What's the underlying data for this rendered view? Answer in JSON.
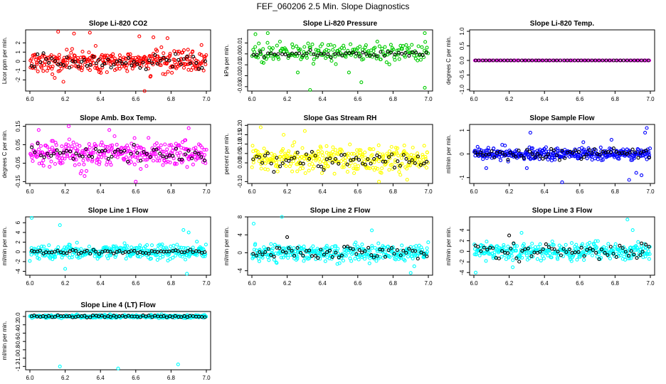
{
  "figure": {
    "title": "FEF_060206  2.5 Min. Slope Diagnostics"
  },
  "chart_data": [
    {
      "type": "scatter",
      "title": "Slope Li-820 CO2",
      "ylabel": "Licor ppm per min.",
      "xlim": [
        6.0,
        7.0
      ],
      "ylim": [
        -3.2,
        3.4
      ],
      "xticks": [
        "6.0",
        "6.2",
        "6.4",
        "6.6",
        "6.8",
        "7.0"
      ],
      "yticks": [
        {
          "v": -2,
          "label": "-2"
        },
        {
          "v": -1,
          "label": "-1"
        },
        {
          "v": 0,
          "label": "0"
        },
        {
          "v": 1,
          "label": "1"
        },
        {
          "v": 2,
          "label": "2"
        }
      ],
      "color": "#ff0000",
      "series": [
        {
          "name": "points",
          "color": "#ff0000",
          "spread": 0.9,
          "n": 330,
          "seed": 11,
          "extra": [
            [
              6.16,
              3.2
            ],
            [
              6.19,
              -2.2
            ],
            [
              6.25,
              3.0
            ],
            [
              6.34,
              3.1
            ],
            [
              6.65,
              -3.2
            ],
            [
              6.62,
              2.7
            ],
            [
              6.7,
              2.6
            ],
            [
              6.78,
              2.5
            ]
          ]
        },
        {
          "name": "black",
          "color": "#000000",
          "spread": 0.7,
          "n": 60,
          "seed": 12
        }
      ]
    },
    {
      "type": "scatter",
      "title": "Slope Li-820 Pressure",
      "ylabel": "kPa per min.",
      "xlim": [
        6.0,
        7.0
      ],
      "ylim": [
        -0.034,
        0.022
      ],
      "xticks": [
        "6.0",
        "6.2",
        "6.4",
        "6.6",
        "6.8",
        "7.0"
      ],
      "yticks": [
        {
          "v": -0.03,
          "label": "-0.03"
        },
        {
          "v": -0.02,
          "label": "-0.02"
        },
        {
          "v": -0.01,
          "label": "-0.01"
        },
        {
          "v": 0.0,
          "label": "0.00"
        },
        {
          "v": 0.01,
          "label": "0.01"
        }
      ],
      "color": "#00cc00",
      "series": [
        {
          "name": "points",
          "color": "#00cc00",
          "spread": 0.006,
          "n": 200,
          "seed": 21,
          "bias": 0.001,
          "extra": [
            [
              6.33,
              -0.033
            ],
            [
              6.98,
              -0.031
            ],
            [
              6.62,
              -0.026
            ],
            [
              6.02,
              0.018
            ],
            [
              6.09,
              0.019
            ],
            [
              6.98,
              0.019
            ],
            [
              6.55,
              -0.017
            ],
            [
              6.26,
              -0.017
            ]
          ]
        },
        {
          "name": "black",
          "color": "#000000",
          "spread": 0.002,
          "n": 50,
          "seed": 22,
          "bias": 0.0
        }
      ]
    },
    {
      "type": "scatter",
      "title": "Slope Li-820 Temp.",
      "ylabel": "degrees C per min.",
      "xlim": [
        6.0,
        7.0
      ],
      "ylim": [
        -1.05,
        1.05
      ],
      "xticks": [
        "6.0",
        "6.2",
        "6.4",
        "6.6",
        "6.8",
        "7.0"
      ],
      "yticks": [
        {
          "v": -1.0,
          "label": "-1.0"
        },
        {
          "v": -0.5,
          "label": "-0.5"
        },
        {
          "v": 0.0,
          "label": "0.0"
        },
        {
          "v": 0.5,
          "label": "0.5"
        },
        {
          "v": 1.0,
          "label": "1.0"
        }
      ],
      "color": "#ff00ff",
      "series": [
        {
          "name": "points",
          "color": "#ff00ff",
          "spread": 0.0,
          "n": 95,
          "seed": 31,
          "line": true
        },
        {
          "name": "black",
          "color": "#000000",
          "spread": 0.0,
          "n": 50,
          "seed": 32,
          "line": true
        }
      ]
    },
    {
      "type": "scatter",
      "title": "Slope Amb. Box Temp.",
      "ylabel": "degrees C per min.",
      "xlim": [
        6.0,
        7.0
      ],
      "ylim": [
        -0.16,
        0.16
      ],
      "xticks": [
        "6.0",
        "6.2",
        "6.4",
        "6.6",
        "6.8",
        "7.0"
      ],
      "yticks": [
        {
          "v": -0.15,
          "label": "-0.15"
        },
        {
          "v": -0.05,
          "label": "-0.05"
        },
        {
          "v": 0.05,
          "label": "0.05"
        },
        {
          "v": 0.15,
          "label": "0.15"
        }
      ],
      "color": "#ff00ff",
      "series": [
        {
          "name": "points",
          "color": "#ff00ff",
          "spread": 0.05,
          "n": 330,
          "seed": 41,
          "extra": [
            [
              6.22,
              0.15
            ],
            [
              6.31,
              -0.12
            ],
            [
              6.6,
              -0.15
            ],
            [
              6.45,
              0.13
            ],
            [
              6.05,
              0.13
            ],
            [
              6.9,
              0.14
            ]
          ]
        },
        {
          "name": "black",
          "color": "#000000",
          "spread": 0.03,
          "n": 55,
          "seed": 42
        }
      ]
    },
    {
      "type": "scatter",
      "title": "Slope Gas Stream RH",
      "ylabel": "percent per min.",
      "xlim": [
        6.0,
        7.0
      ],
      "ylim": [
        -0.11,
        0.205
      ],
      "xticks": [
        "6.0",
        "6.2",
        "6.4",
        "6.6",
        "6.8",
        "7.0"
      ],
      "yticks": [
        {
          "v": -0.1,
          "label": "-0.10"
        },
        {
          "v": 0.0,
          "label": "0.00"
        },
        {
          "v": 0.05,
          "label": "0.05"
        },
        {
          "v": 0.1,
          "label": "0.10"
        },
        {
          "v": 0.15,
          "label": "0.15"
        },
        {
          "v": 0.2,
          "label": "0.20"
        }
      ],
      "color": "#ffff00",
      "series": [
        {
          "name": "points",
          "color": "#ffff00",
          "spread": 0.045,
          "n": 330,
          "seed": 51,
          "bias": 0.02,
          "extra": [
            [
              6.05,
              0.19
            ],
            [
              6.3,
              0.17
            ],
            [
              6.72,
              -0.1
            ],
            [
              6.88,
              -0.09
            ],
            [
              6.18,
              0.15
            ]
          ]
        },
        {
          "name": "black",
          "color": "#000000",
          "spread": 0.035,
          "n": 60,
          "seed": 52,
          "bias": 0.01
        }
      ]
    },
    {
      "type": "scatter",
      "title": "Slope Sample Flow",
      "ylabel": "ml/min per min.",
      "xlim": [
        6.0,
        7.0
      ],
      "ylim": [
        -1.25,
        1.25
      ],
      "xticks": [
        "6.0",
        "6.2",
        "6.4",
        "6.6",
        "6.8",
        "7.0"
      ],
      "yticks": [
        {
          "v": -1,
          "label": "-1"
        },
        {
          "v": 0,
          "label": "0"
        },
        {
          "v": 1,
          "label": "1"
        }
      ],
      "color": "#0000ff",
      "series": [
        {
          "name": "points",
          "color": "#0000ff",
          "spread": 0.18,
          "n": 340,
          "seed": 61,
          "extra": [
            [
              6.98,
              1.1
            ],
            [
              6.97,
              0.9
            ],
            [
              6.95,
              -0.9
            ],
            [
              6.5,
              -1.2
            ],
            [
              6.88,
              -1.1
            ],
            [
              6.32,
              0.9
            ],
            [
              6.07,
              -0.6
            ],
            [
              6.3,
              -0.6
            ],
            [
              6.78,
              0.6
            ],
            [
              6.62,
              0.5
            ],
            [
              6.92,
              -0.8
            ]
          ]
        },
        {
          "name": "black",
          "color": "#000000",
          "spread": 0.15,
          "n": 65,
          "seed": 62
        }
      ]
    },
    {
      "type": "scatter",
      "title": "Slope Line 1 Flow",
      "ylabel": "ml/min per min.",
      "xlim": [
        6.0,
        7.0
      ],
      "ylim": [
        -4.8,
        7.2
      ],
      "xticks": [
        "6.0",
        "6.2",
        "6.4",
        "6.6",
        "6.8",
        "7.0"
      ],
      "yticks": [
        {
          "v": -4,
          "label": "-4"
        },
        {
          "v": -2,
          "label": "-2"
        },
        {
          "v": 0,
          "label": "0"
        },
        {
          "v": 2,
          "label": "2"
        },
        {
          "v": 4,
          "label": "4"
        },
        {
          "v": 6,
          "label": "6"
        }
      ],
      "color": "#00ffff",
      "series": [
        {
          "name": "points",
          "color": "#00ffff",
          "spread": 1.1,
          "n": 330,
          "seed": 71,
          "extra": [
            [
              6.01,
              7.0
            ],
            [
              6.17,
              5.5
            ],
            [
              6.89,
              -4.5
            ],
            [
              6.87,
              4.5
            ],
            [
              6.9,
              4.0
            ],
            [
              6.2,
              -3.5
            ]
          ]
        },
        {
          "name": "black",
          "color": "#000000",
          "spread": 0.3,
          "n": 60,
          "seed": 72
        }
      ]
    },
    {
      "type": "scatter",
      "title": "Slope Line 2 Flow",
      "ylabel": "ml/min per min.",
      "xlim": [
        6.0,
        7.0
      ],
      "ylim": [
        -5.0,
        8.0
      ],
      "xticks": [
        "6.0",
        "6.2",
        "6.4",
        "6.6",
        "6.8",
        "7.0"
      ],
      "yticks": [
        {
          "v": -4,
          "label": "-4"
        },
        {
          "v": 0,
          "label": "0"
        },
        {
          "v": 4,
          "label": "4"
        },
        {
          "v": 8,
          "label": "8"
        }
      ],
      "color": "#00ffff",
      "series": [
        {
          "name": "points",
          "color": "#00ffff",
          "spread": 1.4,
          "n": 330,
          "seed": 81,
          "extra": [
            [
              6.01,
              6.5
            ],
            [
              6.17,
              8.0
            ],
            [
              6.68,
              5.0
            ],
            [
              6.9,
              -4.5
            ],
            [
              6.92,
              -3.0
            ]
          ]
        },
        {
          "name": "black",
          "color": "#000000",
          "spread": 1.0,
          "n": 60,
          "seed": 82,
          "extra": [
            [
              6.2,
              3.5
            ]
          ]
        }
      ]
    },
    {
      "type": "scatter",
      "title": "Slope Line 3 Flow",
      "ylabel": "ml/min per min.",
      "xlim": [
        6.0,
        7.0
      ],
      "ylim": [
        -4.5,
        6.5
      ],
      "xticks": [
        "6.0",
        "6.2",
        "6.4",
        "6.6",
        "6.8",
        "7.0"
      ],
      "yticks": [
        {
          "v": -4,
          "label": "-4"
        },
        {
          "v": -2,
          "label": "-2"
        },
        {
          "v": 0,
          "label": "0"
        },
        {
          "v": 2,
          "label": "2"
        },
        {
          "v": 4,
          "label": "4"
        }
      ],
      "color": "#00ffff",
      "series": [
        {
          "name": "points",
          "color": "#00ffff",
          "spread": 1.1,
          "n": 330,
          "seed": 91,
          "extra": [
            [
              6.01,
              -4.0
            ],
            [
              6.87,
              6.0
            ],
            [
              6.27,
              3.5
            ],
            [
              6.22,
              -3.0
            ],
            [
              6.9,
              4.0
            ]
          ]
        },
        {
          "name": "black",
          "color": "#000000",
          "spread": 0.9,
          "n": 60,
          "seed": 92,
          "extra": [
            [
              6.2,
              3.0
            ],
            [
              6.95,
              1.5
            ]
          ]
        }
      ]
    },
    {
      "type": "scatter",
      "title": "Slope Line 4 (LT) Flow",
      "ylabel": "ml/min per min.",
      "xlim": [
        6.0,
        7.0
      ],
      "ylim": [
        -1.28,
        0.12
      ],
      "xticks": [
        "6.0",
        "6.2",
        "6.4",
        "6.6",
        "6.8",
        "7.0"
      ],
      "yticks": [
        {
          "v": -1.2,
          "label": "-1.2"
        },
        {
          "v": -1.0,
          "label": "-1.0"
        },
        {
          "v": -0.8,
          "label": "-0.8"
        },
        {
          "v": -0.6,
          "label": "-0.6"
        },
        {
          "v": -0.4,
          "label": "-0.4"
        },
        {
          "v": -0.2,
          "label": "-0.2"
        },
        {
          "v": 0.0,
          "label": "0.0"
        }
      ],
      "color": "#00ffff",
      "series": [
        {
          "name": "points",
          "color": "#00ffff",
          "spread": 0.025,
          "n": 330,
          "seed": 101,
          "extra": [
            [
              6.17,
              -1.2
            ],
            [
              6.5,
              -1.25
            ],
            [
              6.84,
              -1.15
            ]
          ]
        },
        {
          "name": "black",
          "color": "#000000",
          "spread": 0.02,
          "n": 60,
          "seed": 102
        }
      ]
    }
  ]
}
